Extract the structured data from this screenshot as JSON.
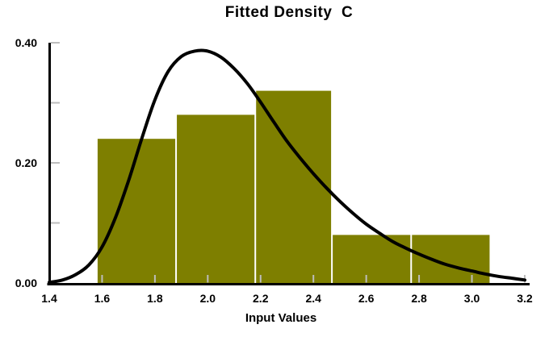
{
  "chart_data": {
    "type": "bar",
    "subtype": "histogram_with_fitted_density_curve",
    "title": "Fitted Density  C",
    "xlabel": "Input Values",
    "ylabel": "",
    "xlim": [
      1.4,
      3.2
    ],
    "ylim": [
      0.0,
      0.4
    ],
    "grid": "off",
    "legend": "none",
    "x_tick_labels": [
      "1.4",
      "1.6",
      "1.8",
      "2.0",
      "2.2",
      "2.4",
      "2.6",
      "2.8",
      "3.0",
      "3.2"
    ],
    "y_tick_labels": [
      "0.00",
      "0.20",
      "0.40"
    ],
    "y_minor_ticks": [
      0.1,
      0.3
    ],
    "colors": {
      "bar_fill": "#7e7f00",
      "bar_separator": "#ffffff",
      "curve": "#000000",
      "axis": "#000000",
      "tick": "#bdbdbd",
      "background": "#ffffff",
      "text": "#000000"
    },
    "histogram": {
      "bin_edges": [
        1.58,
        1.88,
        2.18,
        2.47,
        2.77,
        3.07
      ],
      "heights": [
        0.24,
        0.28,
        0.32,
        0.08,
        0.08
      ]
    },
    "fitted_curve": {
      "peak": {
        "x": 1.97,
        "y": 0.388
      },
      "points": [
        [
          1.4,
          0.001
        ],
        [
          1.45,
          0.005
        ],
        [
          1.5,
          0.014
        ],
        [
          1.55,
          0.03
        ],
        [
          1.6,
          0.06
        ],
        [
          1.65,
          0.108
        ],
        [
          1.7,
          0.17
        ],
        [
          1.75,
          0.24
        ],
        [
          1.8,
          0.305
        ],
        [
          1.85,
          0.352
        ],
        [
          1.9,
          0.377
        ],
        [
          1.95,
          0.386
        ],
        [
          2.0,
          0.386
        ],
        [
          2.05,
          0.376
        ],
        [
          2.1,
          0.357
        ],
        [
          2.15,
          0.332
        ],
        [
          2.2,
          0.301
        ],
        [
          2.25,
          0.268
        ],
        [
          2.3,
          0.236
        ],
        [
          2.35,
          0.208
        ],
        [
          2.4,
          0.182
        ],
        [
          2.45,
          0.158
        ],
        [
          2.5,
          0.136
        ],
        [
          2.55,
          0.116
        ],
        [
          2.6,
          0.098
        ],
        [
          2.65,
          0.083
        ],
        [
          2.7,
          0.069
        ],
        [
          2.75,
          0.058
        ],
        [
          2.8,
          0.048
        ],
        [
          2.85,
          0.039
        ],
        [
          2.9,
          0.031
        ],
        [
          2.95,
          0.025
        ],
        [
          3.0,
          0.02
        ],
        [
          3.05,
          0.015
        ],
        [
          3.1,
          0.011
        ],
        [
          3.15,
          0.008
        ],
        [
          3.2,
          0.005
        ]
      ]
    }
  }
}
